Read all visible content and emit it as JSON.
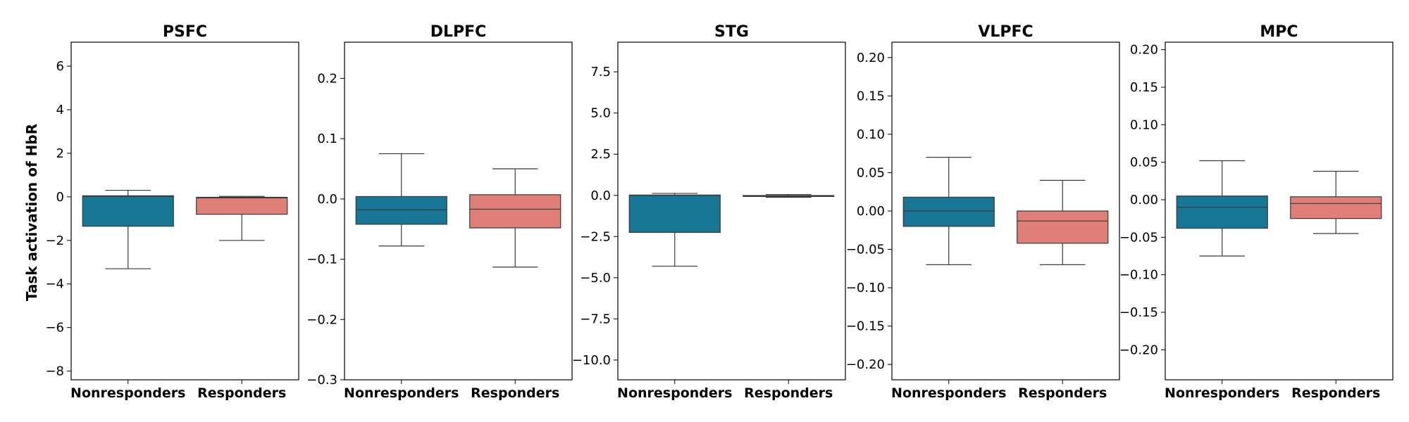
{
  "chart_data": {
    "type": "box",
    "ylabel": "Task activation of HbR",
    "categories": [
      "Nonresponders",
      "Responders"
    ],
    "colors": {
      "Nonresponders": "#167694",
      "Responders": "#e07f77"
    },
    "panels": [
      {
        "title": "PSFC",
        "ylim": [
          -8.4,
          7.1
        ],
        "yticks": [
          6,
          4,
          2,
          0,
          -2,
          -4,
          -6,
          -8
        ],
        "yticklabels": [
          "6",
          "4",
          "2",
          "0",
          "−2",
          "−4",
          "−6",
          "−8"
        ],
        "boxes": [
          {
            "group": "Nonresponders",
            "whislo": -3.3,
            "q1": -1.35,
            "med": 0.02,
            "q3": 0.05,
            "whishi": 0.3
          },
          {
            "group": "Responders",
            "whislo": -2.0,
            "q1": -0.8,
            "med": -0.05,
            "q3": -0.02,
            "whishi": 0.02
          }
        ]
      },
      {
        "title": "DLPFC",
        "ylim": [
          -0.3,
          0.26
        ],
        "yticks": [
          0.2,
          0.1,
          0.0,
          -0.1,
          -0.2,
          -0.3
        ],
        "yticklabels": [
          "0.2",
          "0.1",
          "0.0",
          "−0.1",
          "−0.2",
          "−0.3"
        ],
        "boxes": [
          {
            "group": "Nonresponders",
            "whislo": -0.078,
            "q1": -0.042,
            "med": -0.018,
            "q3": 0.004,
            "whishi": 0.075
          },
          {
            "group": "Responders",
            "whislo": -0.113,
            "q1": -0.048,
            "med": -0.017,
            "q3": 0.007,
            "whishi": 0.05
          }
        ]
      },
      {
        "title": "STG",
        "ylim": [
          -11.2,
          9.3
        ],
        "yticks": [
          7.5,
          5.0,
          2.5,
          0.0,
          -2.5,
          -5.0,
          -7.5,
          -10.0
        ],
        "yticklabels": [
          "7.5",
          "5.0",
          "2.5",
          "0.0",
          "−2.5",
          "−5.0",
          "−7.5",
          "−10.0"
        ],
        "boxes": [
          {
            "group": "Nonresponders",
            "whislo": -4.3,
            "q1": -2.25,
            "med": 0.0,
            "q3": 0.02,
            "whishi": 0.12
          },
          {
            "group": "Responders",
            "whislo": -0.12,
            "q1": -0.07,
            "med": -0.03,
            "q3": -0.01,
            "whishi": 0.05
          }
        ]
      },
      {
        "title": "VLPFC",
        "ylim": [
          -0.22,
          0.22
        ],
        "yticks": [
          0.2,
          0.15,
          0.1,
          0.05,
          0.0,
          -0.05,
          -0.1,
          -0.15,
          -0.2
        ],
        "yticklabels": [
          "0.20",
          "0.15",
          "0.10",
          "0.05",
          "0.00",
          "−0.05",
          "−0.10",
          "−0.15",
          "−0.20"
        ],
        "boxes": [
          {
            "group": "Nonresponders",
            "whislo": -0.07,
            "q1": -0.02,
            "med": 0.0,
            "q3": 0.018,
            "whishi": 0.07
          },
          {
            "group": "Responders",
            "whislo": -0.07,
            "q1": -0.042,
            "med": -0.013,
            "q3": 0.0,
            "whishi": 0.04
          }
        ]
      },
      {
        "title": "MPC",
        "ylim": [
          -0.24,
          0.21
        ],
        "yticks": [
          0.2,
          0.15,
          0.1,
          0.05,
          0.0,
          -0.05,
          -0.1,
          -0.15,
          -0.2
        ],
        "yticklabels": [
          "0.20",
          "0.15",
          "0.10",
          "0.05",
          "0.00",
          "−0.05",
          "−0.10",
          "−0.15",
          "−0.20"
        ],
        "boxes": [
          {
            "group": "Nonresponders",
            "whislo": -0.075,
            "q1": -0.038,
            "med": -0.01,
            "q3": 0.005,
            "whishi": 0.052
          },
          {
            "group": "Responders",
            "whislo": -0.045,
            "q1": -0.025,
            "med": -0.005,
            "q3": 0.004,
            "whishi": 0.038
          }
        ]
      }
    ]
  }
}
